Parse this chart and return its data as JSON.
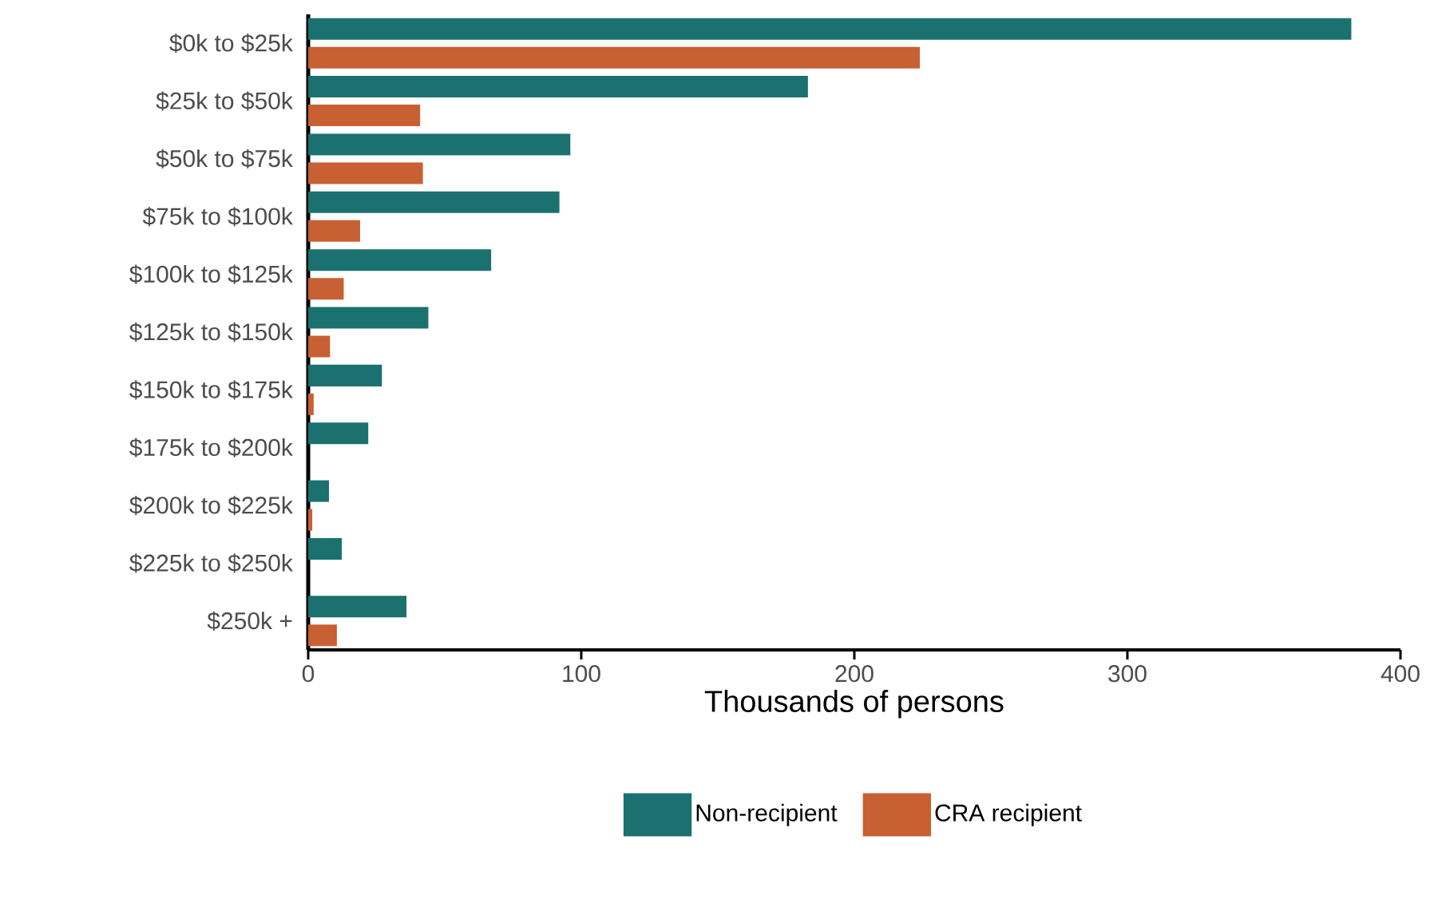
{
  "chart_data": {
    "type": "bar",
    "orientation": "horizontal",
    "xlabel": "Thousands of persons",
    "categories": [
      "$0k to $25k",
      "$25k to $50k",
      "$50k to $75k",
      "$75k to $100k",
      "$100k to $125k",
      "$125k to $150k",
      "$150k to $175k",
      "$175k to $200k",
      "$200k to $225k",
      "$225k to $250k",
      "$250k +"
    ],
    "series": [
      {
        "name": "CRA recipient",
        "color": "#c86033",
        "values": [
          224,
          41,
          42,
          19,
          13,
          8,
          2,
          0,
          1.5,
          0,
          10.5
        ]
      },
      {
        "name": "Non-recipient",
        "color": "#1a716f",
        "values": [
          382,
          183,
          96,
          92,
          67,
          44,
          27,
          22,
          7.6,
          12.3,
          36
        ]
      }
    ],
    "xlim": [
      0,
      400
    ],
    "xticks": [
      0,
      100,
      200,
      300,
      400
    ],
    "grid": false,
    "legend": "bottom"
  }
}
